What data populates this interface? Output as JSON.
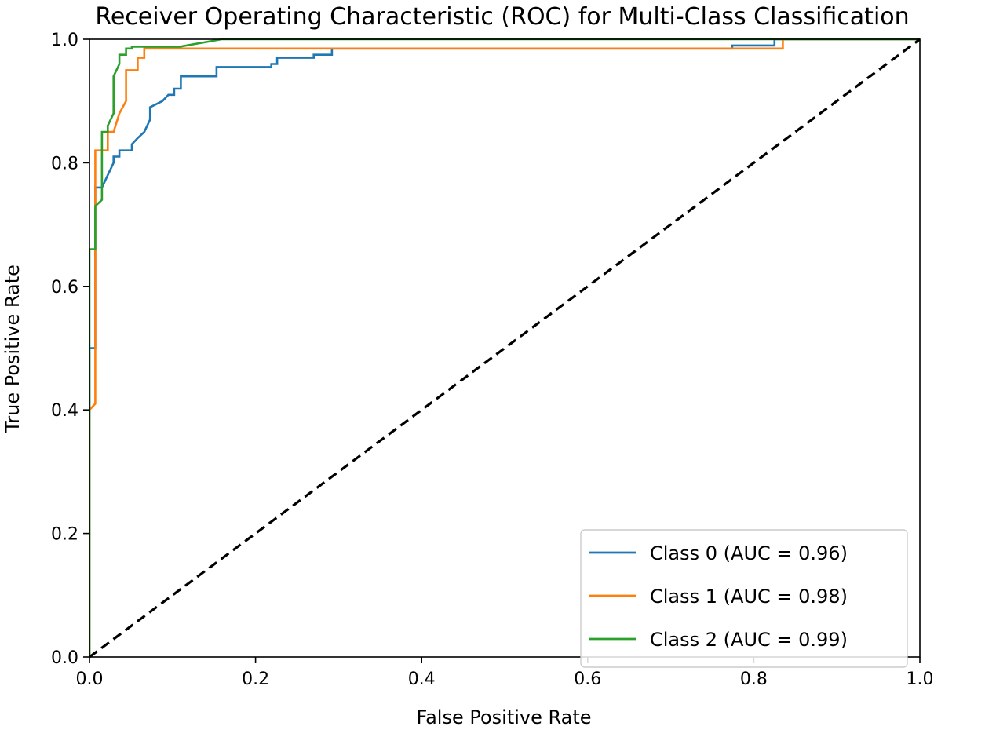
{
  "chart_data": {
    "type": "line",
    "title": "Receiver Operating Characteristic (ROC) for Multi-Class Classification",
    "xlabel": "False Positive Rate",
    "ylabel": "True Positive Rate",
    "xlim": [
      0.0,
      1.0
    ],
    "ylim": [
      0.0,
      1.0
    ],
    "xticks": [
      "0.0",
      "0.2",
      "0.4",
      "0.6",
      "0.8",
      "1.0"
    ],
    "yticks": [
      "0.0",
      "0.2",
      "0.4",
      "0.6",
      "0.8",
      "1.0"
    ],
    "grid": false,
    "legend_position": "lower-right",
    "series": [
      {
        "name": "Class 0 (AUC = 0.96)",
        "color": "#1f77b4",
        "x": [
          0.0,
          0.0,
          0.007,
          0.007,
          0.015,
          0.022,
          0.029,
          0.029,
          0.036,
          0.036,
          0.051,
          0.051,
          0.058,
          0.066,
          0.073,
          0.073,
          0.088,
          0.095,
          0.102,
          0.102,
          0.11,
          0.11,
          0.153,
          0.153,
          0.219,
          0.219,
          0.226,
          0.226,
          0.27,
          0.27,
          0.292,
          0.292,
          0.774,
          0.774,
          0.825,
          0.825,
          1.0
        ],
        "y": [
          0.0,
          0.5,
          0.5,
          0.76,
          0.76,
          0.78,
          0.8,
          0.81,
          0.81,
          0.82,
          0.82,
          0.83,
          0.84,
          0.85,
          0.87,
          0.89,
          0.9,
          0.91,
          0.91,
          0.92,
          0.92,
          0.94,
          0.94,
          0.955,
          0.955,
          0.96,
          0.96,
          0.97,
          0.97,
          0.975,
          0.975,
          0.985,
          0.985,
          0.99,
          0.99,
          1.0,
          1.0
        ]
      },
      {
        "name": "Class 1 (AUC = 0.98)",
        "color": "#ff7f0e",
        "x": [
          0.0,
          0.0,
          0.007,
          0.007,
          0.015,
          0.015,
          0.022,
          0.022,
          0.029,
          0.036,
          0.044,
          0.044,
          0.058,
          0.058,
          0.066,
          0.066,
          0.835,
          0.835,
          1.0
        ],
        "y": [
          0.0,
          0.4,
          0.41,
          0.82,
          0.82,
          0.82,
          0.82,
          0.85,
          0.85,
          0.88,
          0.9,
          0.95,
          0.95,
          0.97,
          0.97,
          0.985,
          0.985,
          1.0,
          1.0
        ]
      },
      {
        "name": "Class 2 (AUC = 0.99)",
        "color": "#2ca02c",
        "x": [
          0.0,
          0.0,
          0.007,
          0.007,
          0.015,
          0.015,
          0.022,
          0.022,
          0.029,
          0.029,
          0.036,
          0.036,
          0.044,
          0.044,
          0.051,
          0.051,
          0.109,
          0.159,
          1.0
        ],
        "y": [
          0.0,
          0.66,
          0.66,
          0.73,
          0.74,
          0.85,
          0.85,
          0.86,
          0.88,
          0.94,
          0.96,
          0.975,
          0.975,
          0.985,
          0.985,
          0.988,
          0.988,
          1.0,
          1.0
        ]
      },
      {
        "name": "",
        "color": "#000000",
        "dashed": true,
        "x": [
          0.0,
          1.0
        ],
        "y": [
          0.0,
          1.0
        ]
      }
    ]
  }
}
